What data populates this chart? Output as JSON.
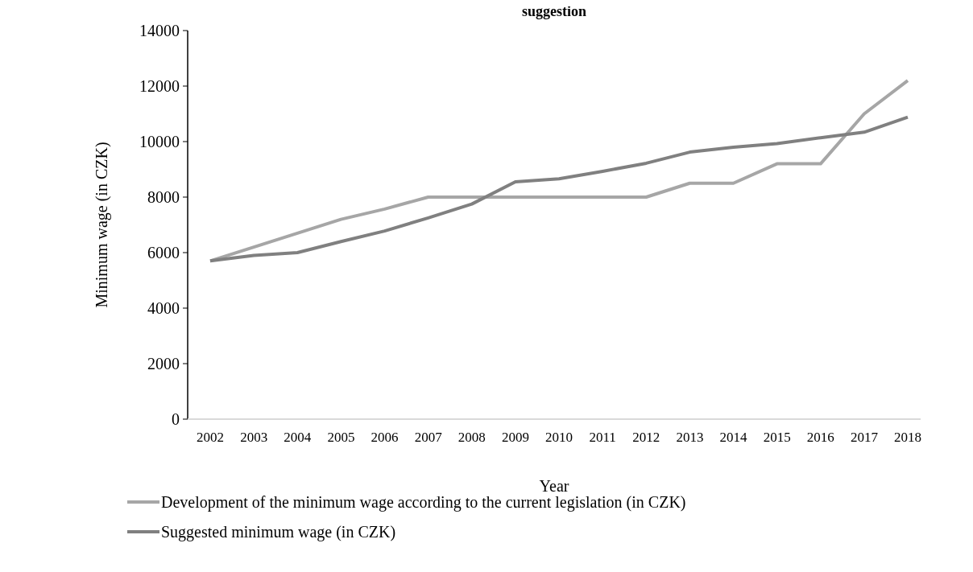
{
  "chart_data": {
    "type": "line",
    "title": "suggestion",
    "xlabel": "Year",
    "ylabel": "Minimum wage (in CZK)",
    "categories": [
      "2002",
      "2003",
      "2004",
      "2005",
      "2006",
      "2007",
      "2008",
      "2009",
      "2010",
      "2011",
      "2012",
      "2013",
      "2014",
      "2015",
      "2016",
      "2017",
      "2018"
    ],
    "series": [
      {
        "name": "Development of the minimum wage according to the current legislation (in CZK)",
        "color": "#a6a6a6",
        "values": [
          5700,
          6200,
          6700,
          7200,
          7570,
          8000,
          8000,
          8000,
          8000,
          8000,
          8000,
          8500,
          8500,
          9200,
          9200,
          11000,
          12200
        ]
      },
      {
        "name": "Suggested minimum wage (in CZK)",
        "color": "#808080",
        "values": [
          5700,
          5900,
          6000,
          6400,
          6780,
          7250,
          7750,
          8550,
          8660,
          8930,
          9220,
          9620,
          9800,
          9930,
          10140,
          10340,
          10880
        ]
      }
    ],
    "ylim": [
      0,
      14000
    ],
    "yticks": [
      0,
      2000,
      4000,
      6000,
      8000,
      10000,
      12000,
      14000
    ],
    "grid": false,
    "legend": "bottom",
    "marker": "none",
    "line_style": "solid"
  }
}
